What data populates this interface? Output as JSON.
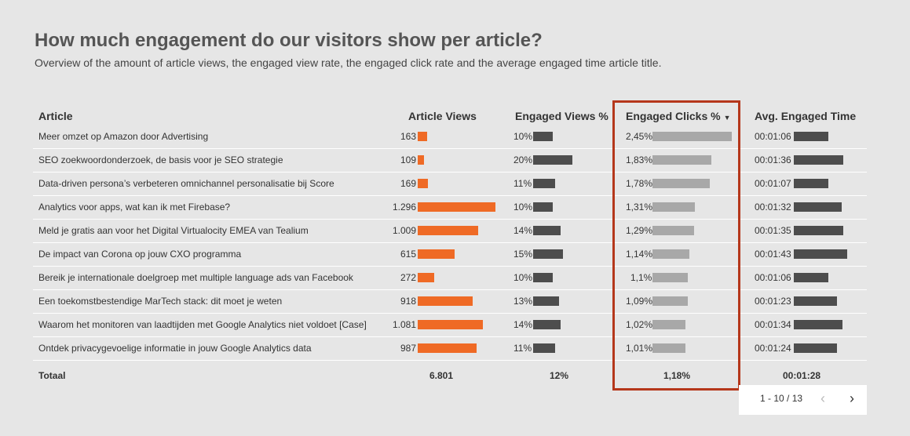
{
  "title": "How much engagement do our visitors show per article?",
  "subtitle": "Overview of the amount of article views, the engaged view rate, the engaged click rate and the average engaged time article title.",
  "columns": {
    "article": "Article",
    "views": "Article Views",
    "engaged_views": "Engaged Views %",
    "engaged_clicks": "Engaged Clicks %",
    "sort_indicator": "▼",
    "avg_time": "Avg. Engaged Time"
  },
  "colors": {
    "views_bar": "#ef6a25",
    "engaged_views_bar": "#4d4d4d",
    "engaged_clicks_bar": "#a8a8a8",
    "avg_time_bar": "#4d4d4d",
    "highlight_border": "#b5371b"
  },
  "rows": [
    {
      "article": "Meer omzet op Amazon door Advertising",
      "views": "163",
      "views_value": 163,
      "ev": "10%",
      "ev_value": 10,
      "ec": "2,45%",
      "ec_value": 2.45,
      "at": "00:01:06",
      "at_seconds": 66
    },
    {
      "article": "SEO zoekwoordonderzoek, de basis voor je SEO strategie",
      "views": "109",
      "views_value": 109,
      "ev": "20%",
      "ev_value": 20,
      "ec": "1,83%",
      "ec_value": 1.83,
      "at": "00:01:36",
      "at_seconds": 96
    },
    {
      "article": "Data-driven persona’s verbeteren omnichannel personalisatie bij Score",
      "views": "169",
      "views_value": 169,
      "ev": "11%",
      "ev_value": 11,
      "ec": "1,78%",
      "ec_value": 1.78,
      "at": "00:01:07",
      "at_seconds": 67
    },
    {
      "article": "Analytics voor apps, wat kan ik met Firebase?",
      "views": "1.296",
      "views_value": 1296,
      "ev": "10%",
      "ev_value": 10,
      "ec": "1,31%",
      "ec_value": 1.31,
      "at": "00:01:32",
      "at_seconds": 92
    },
    {
      "article": "Meld je gratis aan voor het Digital Virtualocity EMEA van Tealium",
      "views": "1.009",
      "views_value": 1009,
      "ev": "14%",
      "ev_value": 14,
      "ec": "1,29%",
      "ec_value": 1.29,
      "at": "00:01:35",
      "at_seconds": 95
    },
    {
      "article": "De impact van Corona op jouw CXO programma",
      "views": "615",
      "views_value": 615,
      "ev": "15%",
      "ev_value": 15,
      "ec": "1,14%",
      "ec_value": 1.14,
      "at": "00:01:43",
      "at_seconds": 103
    },
    {
      "article": "Bereik je internationale doelgroep met multiple language ads van Facebook",
      "views": "272",
      "views_value": 272,
      "ev": "10%",
      "ev_value": 10,
      "ec": "1,1%",
      "ec_value": 1.1,
      "at": "00:01:06",
      "at_seconds": 66
    },
    {
      "article": "Een toekomstbestendige MarTech stack: dit moet je weten",
      "views": "918",
      "views_value": 918,
      "ev": "13%",
      "ev_value": 13,
      "ec": "1,09%",
      "ec_value": 1.09,
      "at": "00:01:23",
      "at_seconds": 83
    },
    {
      "article": "Waarom het monitoren van laadtijden met Google Analytics niet voldoet [Case]",
      "views": "1.081",
      "views_value": 1081,
      "ev": "14%",
      "ev_value": 14,
      "ec": "1,02%",
      "ec_value": 1.02,
      "at": "00:01:34",
      "at_seconds": 94
    },
    {
      "article": "Ontdek privacygevoelige informatie in jouw Google Analytics data",
      "views": "987",
      "views_value": 987,
      "ev": "11%",
      "ev_value": 11,
      "ec": "1,01%",
      "ec_value": 1.01,
      "at": "00:01:24",
      "at_seconds": 84
    }
  ],
  "totals": {
    "label": "Totaal",
    "views": "6.801",
    "ev": "12%",
    "ec": "1,18%",
    "at": "00:01:28"
  },
  "pagination": {
    "range": "1 - 10 / 13",
    "prev_icon": "chevron-left-icon",
    "next_icon": "chevron-right-icon"
  }
}
